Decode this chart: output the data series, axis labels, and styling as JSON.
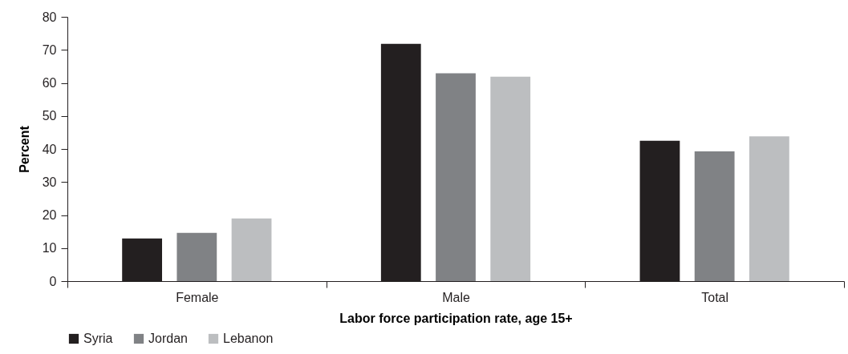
{
  "chart_data": {
    "type": "bar",
    "categories": [
      "Female",
      "Male",
      "Total"
    ],
    "series": [
      {
        "name": "Syria",
        "color": "#231f20",
        "values": [
          12.9,
          71.8,
          42.5
        ]
      },
      {
        "name": "Jordan",
        "color": "#808285",
        "values": [
          14.6,
          62.9,
          39.3
        ]
      },
      {
        "name": "Lebanon",
        "color": "#bcbec0",
        "values": [
          19.0,
          61.9,
          43.8
        ]
      }
    ],
    "xlabel": "Labor force participation rate, age 15+",
    "ylabel": "Percent",
    "ylim": [
      0,
      80
    ],
    "yticks": [
      0,
      10,
      20,
      30,
      40,
      50,
      60,
      70,
      80
    ],
    "legend": "bottom"
  }
}
